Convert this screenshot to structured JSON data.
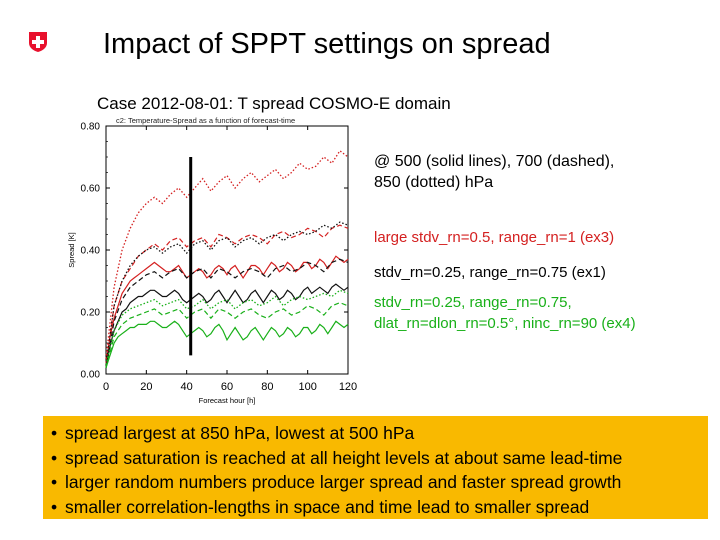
{
  "slide": {
    "title": "Impact of SPPT settings on spread",
    "subtitle": "Case 2012-08-01: T spread COSMO-E domain",
    "annotations": {
      "info": [
        "@ 500 (solid lines), 700 (dashed),",
        "850 (dotted) hPa"
      ],
      "ex3": "large stdv_rn=0.5, range_rn=1 (ex3)",
      "ex1": "stdv_rn=0.25, range_rn=0.75 (ex1)",
      "ex4": [
        "stdv_rn=0.25, range_rn=0.75,",
        "dlat_rn=dlon_rn=0.5°, ninc_rn=90 (ex4)"
      ]
    },
    "bullets": [
      "spread largest at 850 hPa, lowest at 500 hPa",
      "spread saturation is reached at all height levels at about same lead-time",
      "larger random numbers produce larger spread and faster spread growth",
      "smaller correlation-lengths in space and time lead to smaller spread"
    ],
    "colors": {
      "ex3": "#d42020",
      "ex1": "#000000",
      "ex4": "#19b019",
      "box": "#f9b900",
      "logo": "#e8112d"
    }
  },
  "chart_data": {
    "type": "line",
    "title": "c2: Temperature-Spread as a function of forecast-time",
    "xlabel": "Forecast hour [h]",
    "ylabel": "Spread [K]",
    "xlim": [
      0,
      120
    ],
    "ylim": [
      0,
      0.8
    ],
    "xticks": [
      0,
      20,
      40,
      60,
      80,
      100,
      120
    ],
    "yticks": [
      0.0,
      0.2,
      0.4,
      0.6,
      0.8
    ],
    "ytick_labels": [
      "0.00",
      "0.20",
      "0.40",
      "0.60",
      "0.80"
    ],
    "vertical_marker": {
      "x": 42,
      "range": [
        0.06,
        0.7
      ]
    },
    "series": [
      {
        "name": "ex3 500 hPa",
        "color": "red",
        "dash": "solid",
        "x": [
          0,
          2,
          4,
          6,
          8,
          10,
          12,
          14,
          16,
          18,
          20,
          22,
          24,
          26,
          28,
          30,
          32,
          34,
          36,
          38,
          40,
          42,
          44,
          46,
          48,
          50,
          52,
          54,
          56,
          58,
          60,
          62,
          64,
          66,
          68,
          70,
          72,
          74,
          76,
          78,
          80,
          82,
          84,
          86,
          88,
          90,
          92,
          94,
          96,
          98,
          100,
          102,
          104,
          106,
          108,
          110,
          112,
          114,
          116,
          118,
          120
        ],
        "values": [
          0.03,
          0.12,
          0.18,
          0.22,
          0.26,
          0.28,
          0.3,
          0.31,
          0.32,
          0.33,
          0.34,
          0.35,
          0.36,
          0.35,
          0.34,
          0.33,
          0.33,
          0.34,
          0.35,
          0.33,
          0.31,
          0.32,
          0.33,
          0.34,
          0.33,
          0.31,
          0.32,
          0.34,
          0.35,
          0.34,
          0.32,
          0.34,
          0.35,
          0.33,
          0.31,
          0.33,
          0.35,
          0.35,
          0.34,
          0.32,
          0.34,
          0.36,
          0.35,
          0.33,
          0.34,
          0.36,
          0.35,
          0.33,
          0.34,
          0.36,
          0.36,
          0.34,
          0.35,
          0.37,
          0.36,
          0.34,
          0.36,
          0.38,
          0.37,
          0.36,
          0.37
        ]
      },
      {
        "name": "ex3 700 hPa",
        "color": "red",
        "dash": "dashed",
        "x": [
          0,
          4,
          8,
          12,
          16,
          20,
          24,
          28,
          32,
          36,
          40,
          44,
          48,
          52,
          56,
          60,
          64,
          68,
          72,
          76,
          80,
          84,
          88,
          92,
          96,
          100,
          104,
          108,
          112,
          116,
          120
        ],
        "values": [
          0.03,
          0.22,
          0.3,
          0.34,
          0.38,
          0.4,
          0.42,
          0.4,
          0.43,
          0.44,
          0.41,
          0.43,
          0.44,
          0.41,
          0.45,
          0.44,
          0.42,
          0.44,
          0.45,
          0.44,
          0.42,
          0.45,
          0.46,
          0.44,
          0.45,
          0.47,
          0.46,
          0.44,
          0.47,
          0.48,
          0.47
        ]
      },
      {
        "name": "ex3 850 hPa",
        "color": "red",
        "dash": "dotted",
        "x": [
          0,
          4,
          8,
          12,
          16,
          20,
          24,
          28,
          32,
          36,
          40,
          44,
          48,
          52,
          56,
          60,
          64,
          68,
          72,
          76,
          80,
          84,
          88,
          92,
          96,
          100,
          104,
          108,
          112,
          116,
          120
        ],
        "values": [
          0.05,
          0.28,
          0.4,
          0.47,
          0.52,
          0.55,
          0.57,
          0.55,
          0.58,
          0.6,
          0.57,
          0.6,
          0.63,
          0.59,
          0.62,
          0.64,
          0.6,
          0.63,
          0.65,
          0.62,
          0.64,
          0.66,
          0.63,
          0.65,
          0.68,
          0.66,
          0.67,
          0.7,
          0.68,
          0.72,
          0.7
        ]
      },
      {
        "name": "ex1 500 hPa",
        "color": "black",
        "dash": "solid",
        "x": [
          0,
          2,
          4,
          6,
          8,
          10,
          12,
          14,
          16,
          18,
          20,
          22,
          24,
          26,
          28,
          30,
          32,
          34,
          36,
          38,
          40,
          42,
          44,
          46,
          48,
          50,
          52,
          54,
          56,
          58,
          60,
          62,
          64,
          66,
          68,
          70,
          72,
          74,
          76,
          78,
          80,
          82,
          84,
          86,
          88,
          90,
          92,
          94,
          96,
          98,
          100,
          102,
          104,
          106,
          108,
          110,
          112,
          114,
          116,
          118,
          120
        ],
        "values": [
          0.02,
          0.09,
          0.14,
          0.17,
          0.2,
          0.21,
          0.23,
          0.24,
          0.25,
          0.25,
          0.26,
          0.27,
          0.27,
          0.26,
          0.25,
          0.25,
          0.26,
          0.27,
          0.26,
          0.24,
          0.23,
          0.24,
          0.25,
          0.26,
          0.25,
          0.23,
          0.24,
          0.26,
          0.27,
          0.25,
          0.23,
          0.25,
          0.27,
          0.25,
          0.23,
          0.24,
          0.26,
          0.27,
          0.25,
          0.23,
          0.25,
          0.27,
          0.26,
          0.24,
          0.25,
          0.27,
          0.26,
          0.24,
          0.25,
          0.27,
          0.28,
          0.26,
          0.27,
          0.28,
          0.27,
          0.26,
          0.28,
          0.29,
          0.28,
          0.27,
          0.28
        ]
      },
      {
        "name": "ex1 700 hPa",
        "color": "black",
        "dash": "dashed",
        "x": [
          0,
          4,
          8,
          12,
          16,
          20,
          24,
          28,
          32,
          36,
          40,
          44,
          48,
          52,
          56,
          60,
          64,
          68,
          72,
          76,
          80,
          84,
          88,
          92,
          96,
          100,
          104,
          108,
          112,
          116,
          120
        ],
        "values": [
          0.02,
          0.17,
          0.24,
          0.28,
          0.3,
          0.32,
          0.33,
          0.31,
          0.33,
          0.34,
          0.31,
          0.33,
          0.34,
          0.31,
          0.34,
          0.33,
          0.31,
          0.33,
          0.34,
          0.33,
          0.31,
          0.34,
          0.35,
          0.33,
          0.34,
          0.36,
          0.35,
          0.33,
          0.36,
          0.37,
          0.36
        ]
      },
      {
        "name": "ex1 850 hPa",
        "color": "black",
        "dash": "dotted",
        "x": [
          0,
          4,
          8,
          12,
          16,
          20,
          24,
          28,
          32,
          36,
          40,
          44,
          48,
          52,
          56,
          60,
          64,
          68,
          72,
          76,
          80,
          84,
          88,
          92,
          96,
          100,
          104,
          108,
          112,
          116,
          120
        ],
        "values": [
          0.03,
          0.22,
          0.3,
          0.35,
          0.38,
          0.4,
          0.41,
          0.39,
          0.41,
          0.42,
          0.39,
          0.42,
          0.43,
          0.4,
          0.43,
          0.44,
          0.41,
          0.43,
          0.44,
          0.42,
          0.44,
          0.45,
          0.43,
          0.45,
          0.46,
          0.45,
          0.46,
          0.48,
          0.47,
          0.49,
          0.48
        ]
      },
      {
        "name": "ex4 500 hPa",
        "color": "green",
        "dash": "solid",
        "x": [
          0,
          2,
          4,
          6,
          8,
          10,
          12,
          14,
          16,
          18,
          20,
          22,
          24,
          26,
          28,
          30,
          32,
          34,
          36,
          38,
          40,
          42,
          44,
          46,
          48,
          50,
          52,
          54,
          56,
          58,
          60,
          62,
          64,
          66,
          68,
          70,
          72,
          74,
          76,
          78,
          80,
          82,
          84,
          86,
          88,
          90,
          92,
          94,
          96,
          98,
          100,
          102,
          104,
          106,
          108,
          110,
          112,
          114,
          116,
          118,
          120
        ],
        "values": [
          0.02,
          0.06,
          0.1,
          0.12,
          0.13,
          0.14,
          0.15,
          0.15,
          0.16,
          0.16,
          0.16,
          0.17,
          0.17,
          0.16,
          0.15,
          0.15,
          0.16,
          0.17,
          0.16,
          0.14,
          0.12,
          0.13,
          0.14,
          0.15,
          0.14,
          0.12,
          0.13,
          0.15,
          0.16,
          0.14,
          0.11,
          0.13,
          0.15,
          0.13,
          0.11,
          0.12,
          0.14,
          0.15,
          0.13,
          0.11,
          0.13,
          0.15,
          0.14,
          0.12,
          0.13,
          0.15,
          0.14,
          0.12,
          0.13,
          0.15,
          0.15,
          0.13,
          0.14,
          0.16,
          0.15,
          0.13,
          0.15,
          0.17,
          0.16,
          0.15,
          0.16
        ]
      },
      {
        "name": "ex4 700 hPa",
        "color": "green",
        "dash": "dashed",
        "x": [
          0,
          4,
          8,
          12,
          16,
          20,
          24,
          28,
          32,
          36,
          40,
          44,
          48,
          52,
          56,
          60,
          64,
          68,
          72,
          76,
          80,
          84,
          88,
          92,
          96,
          100,
          104,
          108,
          112,
          116,
          120
        ],
        "values": [
          0.02,
          0.12,
          0.16,
          0.18,
          0.19,
          0.2,
          0.21,
          0.19,
          0.2,
          0.21,
          0.18,
          0.2,
          0.21,
          0.18,
          0.21,
          0.2,
          0.18,
          0.2,
          0.21,
          0.19,
          0.18,
          0.2,
          0.21,
          0.19,
          0.2,
          0.22,
          0.21,
          0.19,
          0.22,
          0.23,
          0.22
        ]
      },
      {
        "name": "ex4 850 hPa",
        "color": "green",
        "dash": "dotted",
        "x": [
          0,
          4,
          8,
          12,
          16,
          20,
          24,
          28,
          32,
          36,
          40,
          44,
          48,
          52,
          56,
          60,
          64,
          68,
          72,
          76,
          80,
          84,
          88,
          92,
          96,
          100,
          104,
          108,
          112,
          116,
          120
        ],
        "values": [
          0.03,
          0.14,
          0.19,
          0.21,
          0.22,
          0.23,
          0.24,
          0.22,
          0.23,
          0.24,
          0.21,
          0.22,
          0.24,
          0.21,
          0.23,
          0.24,
          0.21,
          0.23,
          0.24,
          0.22,
          0.23,
          0.25,
          0.22,
          0.24,
          0.25,
          0.24,
          0.25,
          0.26,
          0.25,
          0.27,
          0.26
        ]
      }
    ]
  }
}
